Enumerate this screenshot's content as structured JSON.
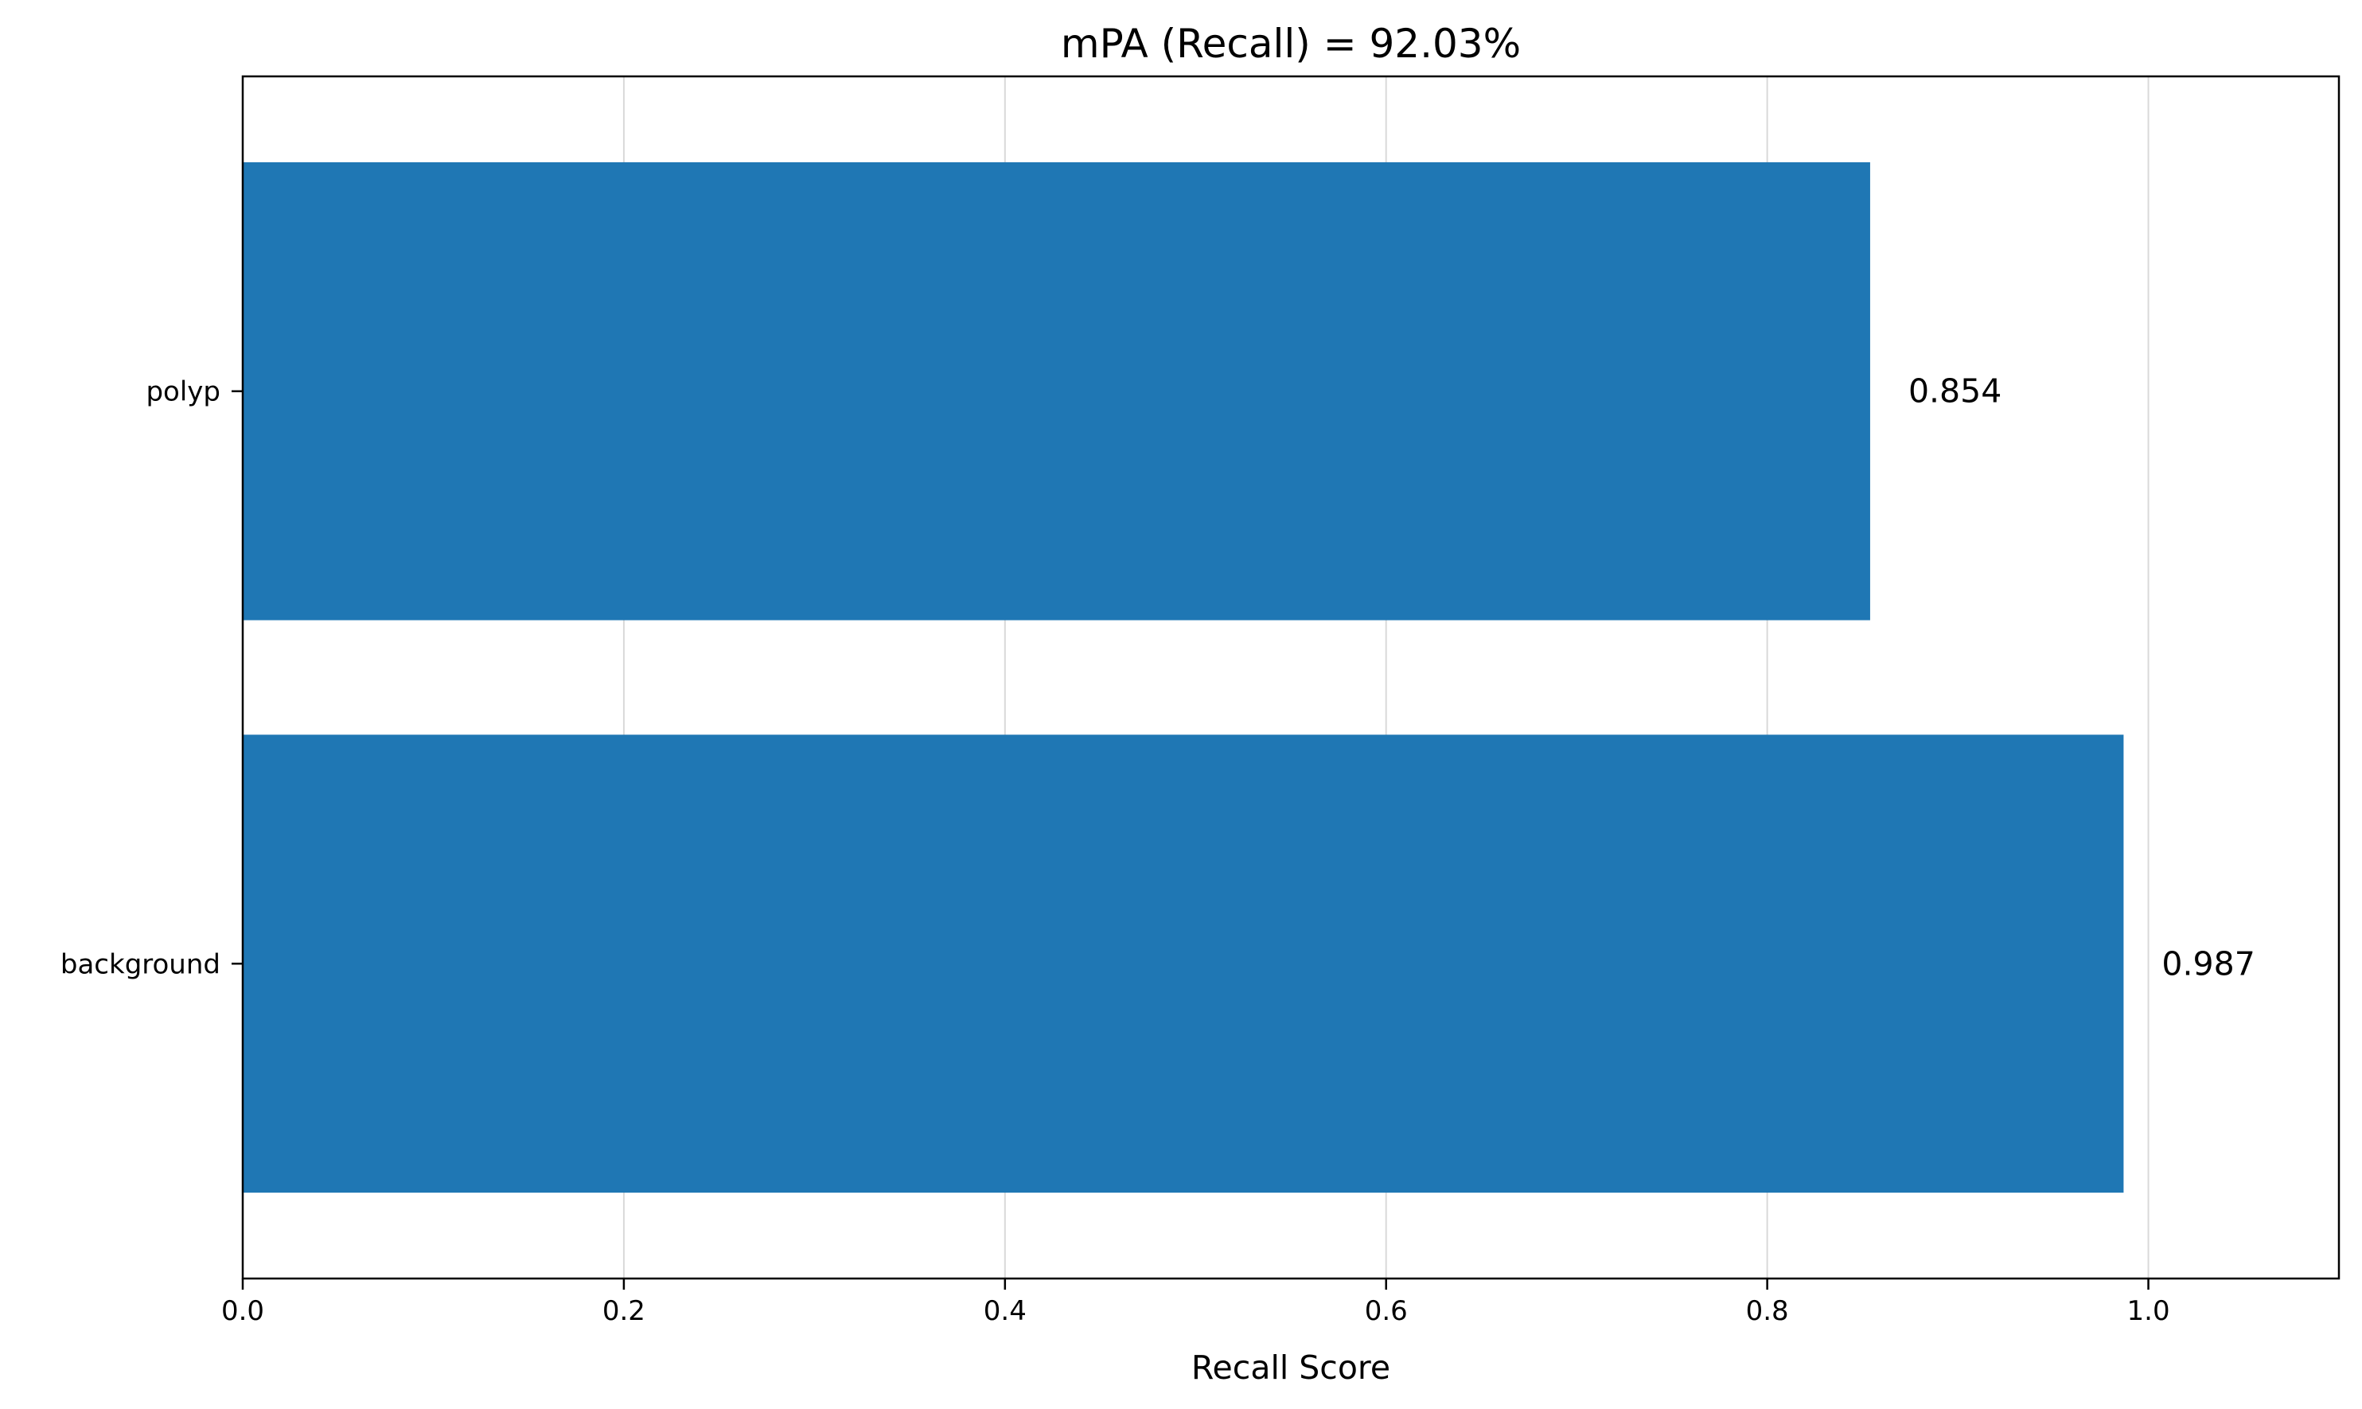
{
  "chart_data": {
    "type": "bar",
    "orientation": "horizontal",
    "title": "mPA (Recall) = 92.03%",
    "xlabel": "Recall Score",
    "ylabel": "",
    "categories": [
      "polyp",
      "background"
    ],
    "values": [
      0.854,
      0.987
    ],
    "value_labels": [
      "0.854",
      "0.987"
    ],
    "xlim": [
      0,
      1.1
    ],
    "xticks": [
      0.0,
      0.2,
      0.4,
      0.6,
      0.8,
      1.0
    ],
    "xtick_labels": [
      "0.0",
      "0.2",
      "0.4",
      "0.6",
      "0.8",
      "1.0"
    ],
    "grid": {
      "x": true,
      "y": false
    },
    "bar_color": "#1f77b4",
    "grid_color": "#d9d9d9"
  }
}
